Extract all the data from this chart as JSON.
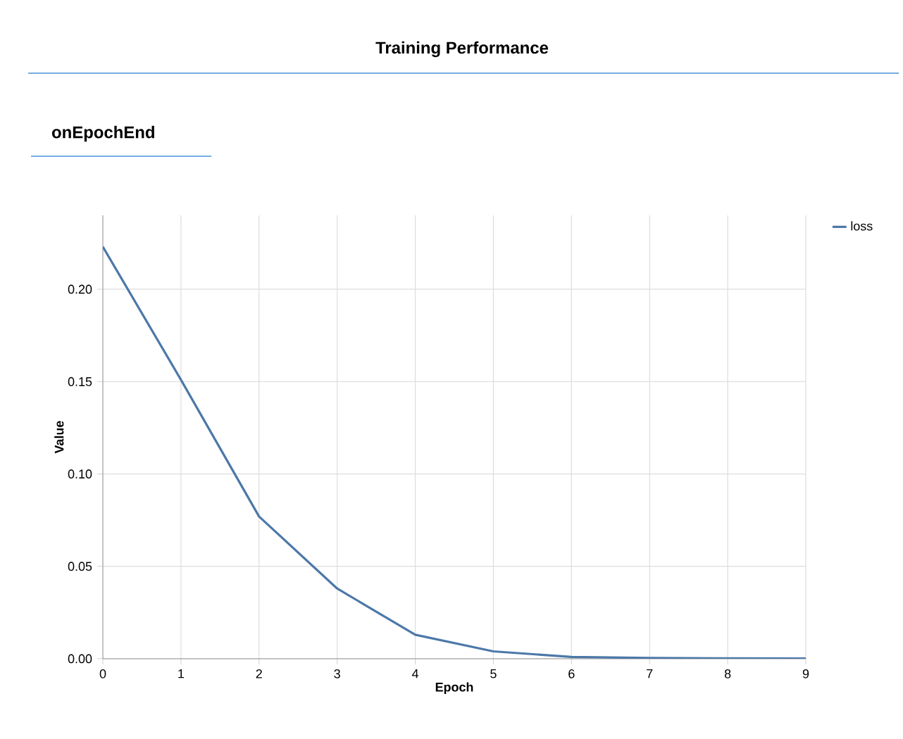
{
  "chart_data": {
    "type": "line",
    "title": "Training Performance",
    "subtitle": "onEpochEnd",
    "xlabel": "Epoch",
    "ylabel": "Value",
    "x": [
      0,
      1,
      2,
      3,
      4,
      5,
      6,
      7,
      8,
      9
    ],
    "series": [
      {
        "name": "loss",
        "color": "#4c78a8",
        "values": [
          0.223,
          0.151,
          0.077,
          0.038,
          0.013,
          0.004,
          0.001,
          0.0004,
          0.0002,
          0.0001
        ]
      }
    ],
    "xlim": [
      0,
      9
    ],
    "xticks": [
      0,
      1,
      2,
      3,
      4,
      5,
      6,
      7,
      8,
      9
    ],
    "ylim": [
      0,
      0.24
    ],
    "yticks": [
      {
        "value": 0,
        "label": "0.00"
      },
      {
        "value": 0.05,
        "label": "0.05"
      },
      {
        "value": 0.1,
        "label": "0.10"
      },
      {
        "value": 0.15,
        "label": "0.15"
      },
      {
        "value": 0.2,
        "label": "0.20"
      }
    ],
    "grid": true,
    "legend": "top right",
    "marker": "none",
    "line_style": "solid"
  }
}
